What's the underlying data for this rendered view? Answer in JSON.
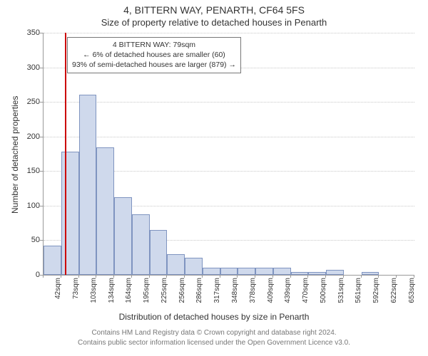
{
  "title_main": "4, BITTERN WAY, PENARTH, CF64 5FS",
  "title_sub": "Size of property relative to detached houses in Penarth",
  "y_axis_label": "Number of detached properties",
  "x_axis_label": "Distribution of detached houses by size in Penarth",
  "footer_line1": "Contains HM Land Registry data © Crown copyright and database right 2024.",
  "footer_line2": "Contains public sector information licensed under the Open Government Licence v3.0.",
  "chart": {
    "type": "histogram",
    "background_color": "#ffffff",
    "bar_fill": "#cfd9ec",
    "bar_border": "#7f94c0",
    "grid_color": "#c8c8c8",
    "axis_color": "#999999",
    "text_color": "#333333",
    "marker_color": "#cc0000",
    "title_fontsize": 14,
    "axis_label_fontsize": 12,
    "tick_fontsize": 11,
    "x_tick_fontsize": 10,
    "ylim": [
      0,
      350
    ],
    "ytick_step": 50,
    "y_ticks": [
      0,
      50,
      100,
      150,
      200,
      250,
      300,
      350
    ],
    "x_labels": [
      "42sqm",
      "73sqm",
      "103sqm",
      "134sqm",
      "164sqm",
      "195sqm",
      "225sqm",
      "256sqm",
      "286sqm",
      "317sqm",
      "348sqm",
      "378sqm",
      "409sqm",
      "439sqm",
      "470sqm",
      "500sqm",
      "531sqm",
      "561sqm",
      "592sqm",
      "622sqm",
      "653sqm"
    ],
    "values": [
      42,
      178,
      260,
      184,
      112,
      88,
      65,
      30,
      25,
      10,
      10,
      10,
      10,
      10,
      4,
      4,
      7,
      0,
      4,
      0,
      0
    ],
    "property_marker": {
      "label": "4 BITTERN WAY",
      "size_sqm": 79,
      "bin_index_left_of": 1,
      "fraction_into_bin": 0.2
    },
    "annotation": {
      "lines": [
        "4 BITTERN WAY: 79sqm",
        "← 6% of detached houses are smaller (60)",
        "93% of semi-detached houses are larger (879) →"
      ],
      "border_color": "#777777",
      "background": "#ffffff",
      "fontsize": 10.5
    }
  }
}
